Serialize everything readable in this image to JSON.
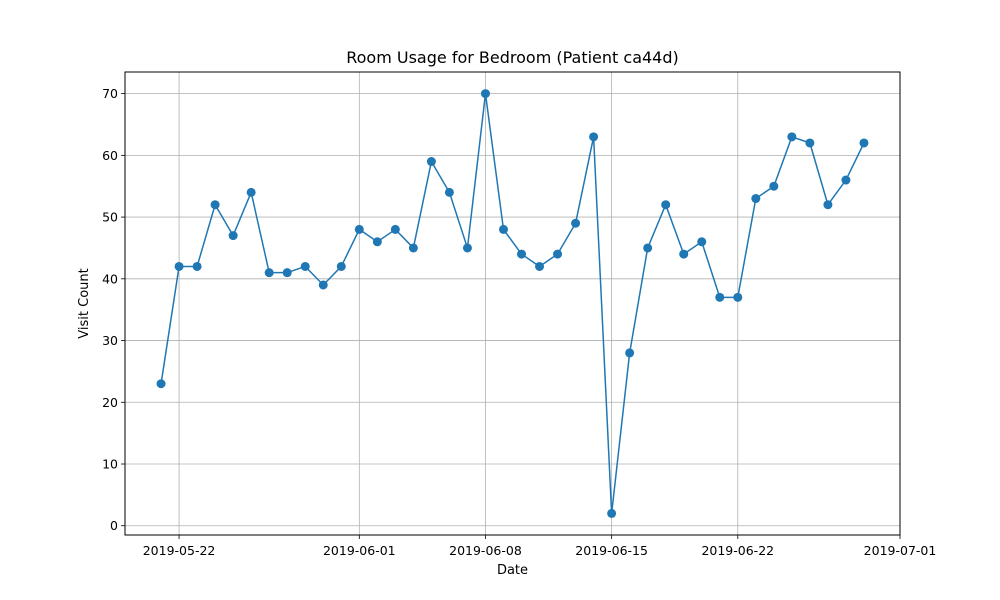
{
  "chart_data": {
    "type": "line",
    "title": "Room Usage for Bedroom (Patient ca44d)",
    "xlabel": "Date",
    "ylabel": "Visit Count",
    "x_start": "2019-05-21",
    "x_end": "2019-06-30",
    "xlim": [
      "2019-05-19",
      "2019-07-01"
    ],
    "ylim": [
      -1.5,
      73.5
    ],
    "grid": true,
    "series_color": "#1f77b4",
    "x_ticks": [
      {
        "date": "2019-05-22",
        "label": "2019-05-22"
      },
      {
        "date": "2019-06-01",
        "label": "2019-06-01"
      },
      {
        "date": "2019-06-08",
        "label": "2019-06-08"
      },
      {
        "date": "2019-06-15",
        "label": "2019-06-15"
      },
      {
        "date": "2019-06-22",
        "label": "2019-06-22"
      },
      {
        "date": "2019-07-01",
        "label": "2019-07-01"
      }
    ],
    "y_ticks": [
      0,
      10,
      20,
      30,
      40,
      50,
      60,
      70
    ],
    "values": [
      23,
      42,
      42,
      52,
      47,
      54,
      41,
      41,
      42,
      39,
      42,
      48,
      46,
      48,
      45,
      59,
      54,
      45,
      70,
      48,
      44,
      42,
      44,
      49,
      63,
      2,
      28,
      45,
      52,
      44,
      46,
      37,
      37,
      53,
      55,
      63,
      62,
      52,
      56,
      62
    ]
  }
}
